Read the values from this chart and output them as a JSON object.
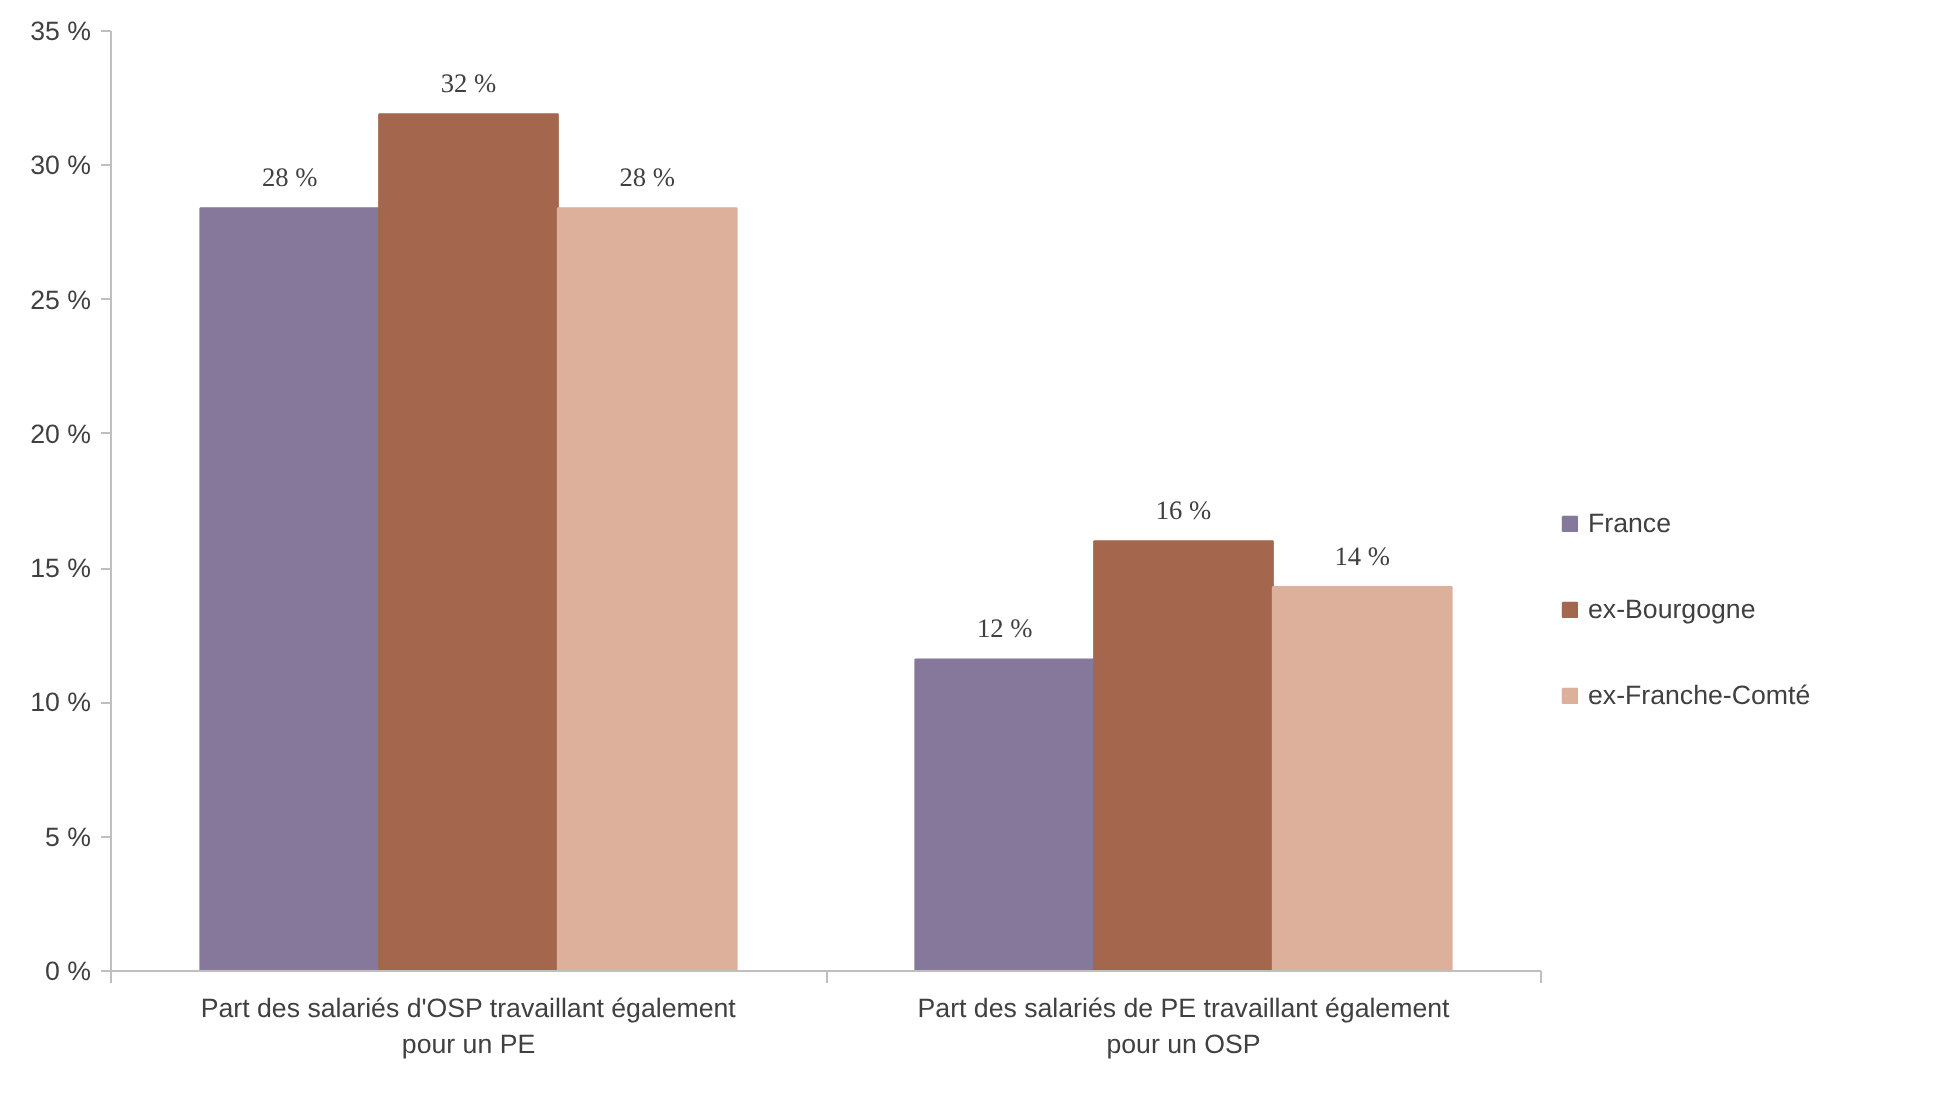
{
  "chart_data": {
    "type": "bar",
    "categories": [
      "Part des salariés d'OSP travaillant également pour un PE",
      "Part des salariés de PE travaillant également pour un OSP"
    ],
    "series": [
      {
        "name": "France",
        "color": "#85789a",
        "values": [
          28.4,
          11.6
        ],
        "value_labels": [
          "28 %",
          "12 %"
        ]
      },
      {
        "name": "ex-Bourgogne",
        "color": "#a4674d",
        "values": [
          31.9,
          16.0
        ],
        "value_labels": [
          "32 %",
          "16 %"
        ]
      },
      {
        "name": "ex-Franche-Comté",
        "color": "#ddb09b",
        "values": [
          28.4,
          14.3
        ],
        "value_labels": [
          "28 %",
          "14 %"
        ]
      }
    ],
    "ylim": [
      0,
      35
    ],
    "yticks": [
      {
        "value": 0,
        "label": "0 %"
      },
      {
        "value": 5,
        "label": "5 %"
      },
      {
        "value": 10,
        "label": "10 %"
      },
      {
        "value": 15,
        "label": "15 %"
      },
      {
        "value": 20,
        "label": "20 %"
      },
      {
        "value": 25,
        "label": "25 %"
      },
      {
        "value": 30,
        "label": "30 %"
      },
      {
        "value": 35,
        "label": "35 %"
      }
    ],
    "grid": false,
    "legend": "right"
  }
}
